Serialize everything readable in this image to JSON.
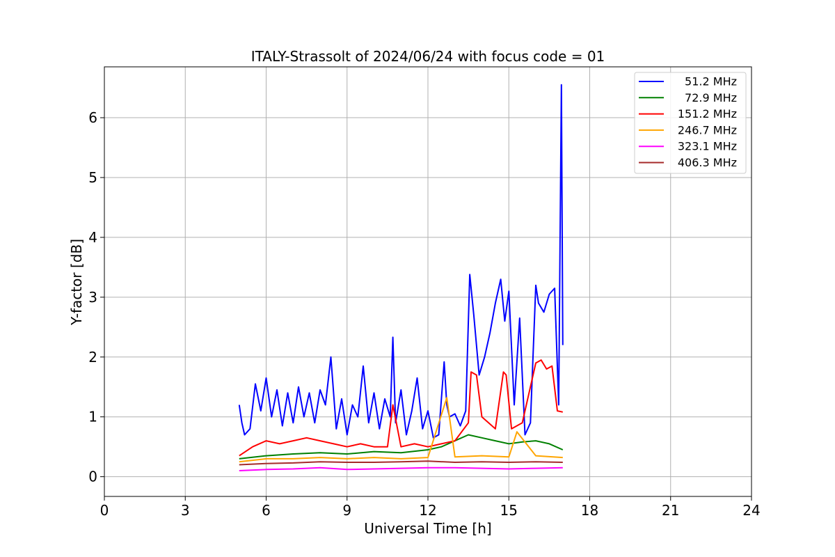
{
  "chart_data": {
    "type": "line",
    "title": "ITALY-Strassolt of 2024/06/24 with focus code = 01",
    "xlabel": "Universal Time [h]",
    "ylabel": "Y-factor [dB]",
    "xlim": [
      0,
      24
    ],
    "ylim": [
      -0.33,
      6.85
    ],
    "xticks": [
      0,
      3,
      6,
      9,
      12,
      15,
      18,
      21,
      24
    ],
    "yticks": [
      0,
      1,
      2,
      3,
      4,
      5,
      6
    ],
    "grid": true,
    "legend_position": "top-right",
    "series": [
      {
        "name": "51.2 MHz",
        "color": "#0000ff",
        "x": [
          5.0,
          5.1,
          5.2,
          5.4,
          5.6,
          5.8,
          6.0,
          6.2,
          6.4,
          6.6,
          6.8,
          7.0,
          7.2,
          7.4,
          7.6,
          7.8,
          8.0,
          8.2,
          8.4,
          8.6,
          8.8,
          9.0,
          9.2,
          9.4,
          9.6,
          9.8,
          10.0,
          10.2,
          10.4,
          10.6,
          10.7,
          10.8,
          11.0,
          11.2,
          11.4,
          11.6,
          11.8,
          12.0,
          12.2,
          12.4,
          12.6,
          12.7,
          12.8,
          13.0,
          13.2,
          13.4,
          13.55,
          13.7,
          13.9,
          14.1,
          14.3,
          14.5,
          14.7,
          14.85,
          15.0,
          15.2,
          15.4,
          15.6,
          15.8,
          16.0,
          16.1,
          16.3,
          16.5,
          16.7,
          16.85,
          16.95,
          17.0
        ],
        "y": [
          1.2,
          0.9,
          0.7,
          0.8,
          1.55,
          1.1,
          1.65,
          1.0,
          1.45,
          0.85,
          1.4,
          0.9,
          1.5,
          1.0,
          1.4,
          0.9,
          1.45,
          1.2,
          2.0,
          0.8,
          1.3,
          0.7,
          1.2,
          1.0,
          1.85,
          0.9,
          1.4,
          0.8,
          1.3,
          1.0,
          2.33,
          0.9,
          1.45,
          0.7,
          1.1,
          1.65,
          0.8,
          1.1,
          0.65,
          0.7,
          1.92,
          1.2,
          1.0,
          1.05,
          0.85,
          1.1,
          3.38,
          2.7,
          1.7,
          2.0,
          2.4,
          2.9,
          3.3,
          2.6,
          3.1,
          1.2,
          2.65,
          0.7,
          0.9,
          3.2,
          2.9,
          2.75,
          3.05,
          3.15,
          1.2,
          6.55,
          2.2
        ]
      },
      {
        "name": "72.9 MHz",
        "color": "#008000",
        "x": [
          5.0,
          6.0,
          7.0,
          8.0,
          9.0,
          10.0,
          11.0,
          12.0,
          12.5,
          13.0,
          13.5,
          14.0,
          14.5,
          15.0,
          15.5,
          16.0,
          16.5,
          17.0
        ],
        "y": [
          0.3,
          0.35,
          0.38,
          0.4,
          0.38,
          0.42,
          0.4,
          0.45,
          0.5,
          0.6,
          0.7,
          0.65,
          0.6,
          0.55,
          0.58,
          0.6,
          0.55,
          0.45
        ]
      },
      {
        "name": "151.2 MHz",
        "color": "#ff0000",
        "x": [
          5.0,
          5.5,
          6.0,
          6.5,
          7.0,
          7.5,
          8.0,
          8.5,
          9.0,
          9.5,
          10.0,
          10.5,
          10.7,
          11.0,
          11.5,
          12.0,
          12.5,
          13.0,
          13.5,
          13.6,
          13.8,
          14.0,
          14.5,
          14.8,
          14.9,
          15.1,
          15.5,
          16.0,
          16.2,
          16.4,
          16.6,
          16.8,
          17.0
        ],
        "y": [
          0.35,
          0.5,
          0.6,
          0.55,
          0.6,
          0.65,
          0.6,
          0.55,
          0.5,
          0.55,
          0.5,
          0.5,
          1.2,
          0.5,
          0.55,
          0.5,
          0.55,
          0.6,
          0.9,
          1.75,
          1.7,
          1.0,
          0.8,
          1.75,
          1.7,
          0.8,
          0.9,
          1.9,
          1.95,
          1.8,
          1.85,
          1.1,
          1.08
        ]
      },
      {
        "name": "246.7 MHz",
        "color": "#ffa500",
        "x": [
          5.0,
          6.0,
          7.0,
          8.0,
          9.0,
          10.0,
          11.0,
          12.0,
          12.7,
          13.0,
          14.0,
          15.0,
          15.3,
          16.0,
          17.0
        ],
        "y": [
          0.25,
          0.3,
          0.3,
          0.32,
          0.3,
          0.32,
          0.3,
          0.32,
          1.32,
          0.33,
          0.35,
          0.33,
          0.75,
          0.35,
          0.32
        ]
      },
      {
        "name": "323.1 MHz",
        "color": "#ff00ff",
        "x": [
          5.0,
          6.0,
          7.0,
          8.0,
          9.0,
          10.0,
          11.0,
          12.0,
          13.0,
          14.0,
          15.0,
          16.0,
          17.0
        ],
        "y": [
          0.1,
          0.12,
          0.13,
          0.15,
          0.12,
          0.13,
          0.14,
          0.15,
          0.15,
          0.14,
          0.13,
          0.14,
          0.15
        ]
      },
      {
        "name": "406.3 MHz",
        "color": "#a52a2a",
        "x": [
          5.0,
          6.0,
          7.0,
          8.0,
          9.0,
          10.0,
          11.0,
          12.0,
          13.0,
          14.0,
          15.0,
          16.0,
          17.0
        ],
        "y": [
          0.2,
          0.22,
          0.23,
          0.25,
          0.24,
          0.24,
          0.25,
          0.26,
          0.24,
          0.25,
          0.24,
          0.25,
          0.24
        ]
      }
    ]
  }
}
